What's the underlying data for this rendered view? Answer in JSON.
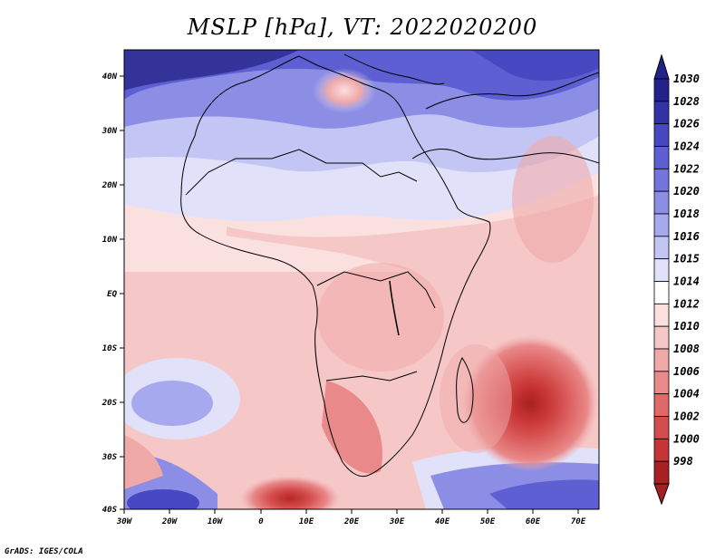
{
  "title": "MSLP [hPa], VT: 2022020200",
  "credit": "GrADS: IGES/COLA",
  "map": {
    "lon_ticks": [
      "30W",
      "20W",
      "10W",
      "0",
      "10E",
      "20E",
      "30E",
      "40E",
      "50E",
      "60E",
      "70E"
    ],
    "lat_ticks": [
      "40N",
      "30N",
      "20N",
      "10N",
      "EQ",
      "10S",
      "20S",
      "30S",
      "40S"
    ]
  },
  "colorbar": {
    "levels": [
      "1030",
      "1028",
      "1026",
      "1024",
      "1022",
      "1020",
      "1018",
      "1016",
      "1015",
      "1014",
      "1012",
      "1010",
      "1008",
      "1006",
      "1004",
      "1002",
      "1000",
      "998"
    ],
    "colors": [
      "#22228a",
      "#3333a8",
      "#4848c2",
      "#5d5fd2",
      "#7375dd",
      "#8c8ee6",
      "#a7a9ee",
      "#c3c5f4",
      "#e1e2fa",
      "#ffffff",
      "#fbe0e0",
      "#f6c7c7",
      "#f0a9a9",
      "#e98989",
      "#e06a6a",
      "#d44d4d",
      "#c73434",
      "#a82020"
    ]
  }
}
